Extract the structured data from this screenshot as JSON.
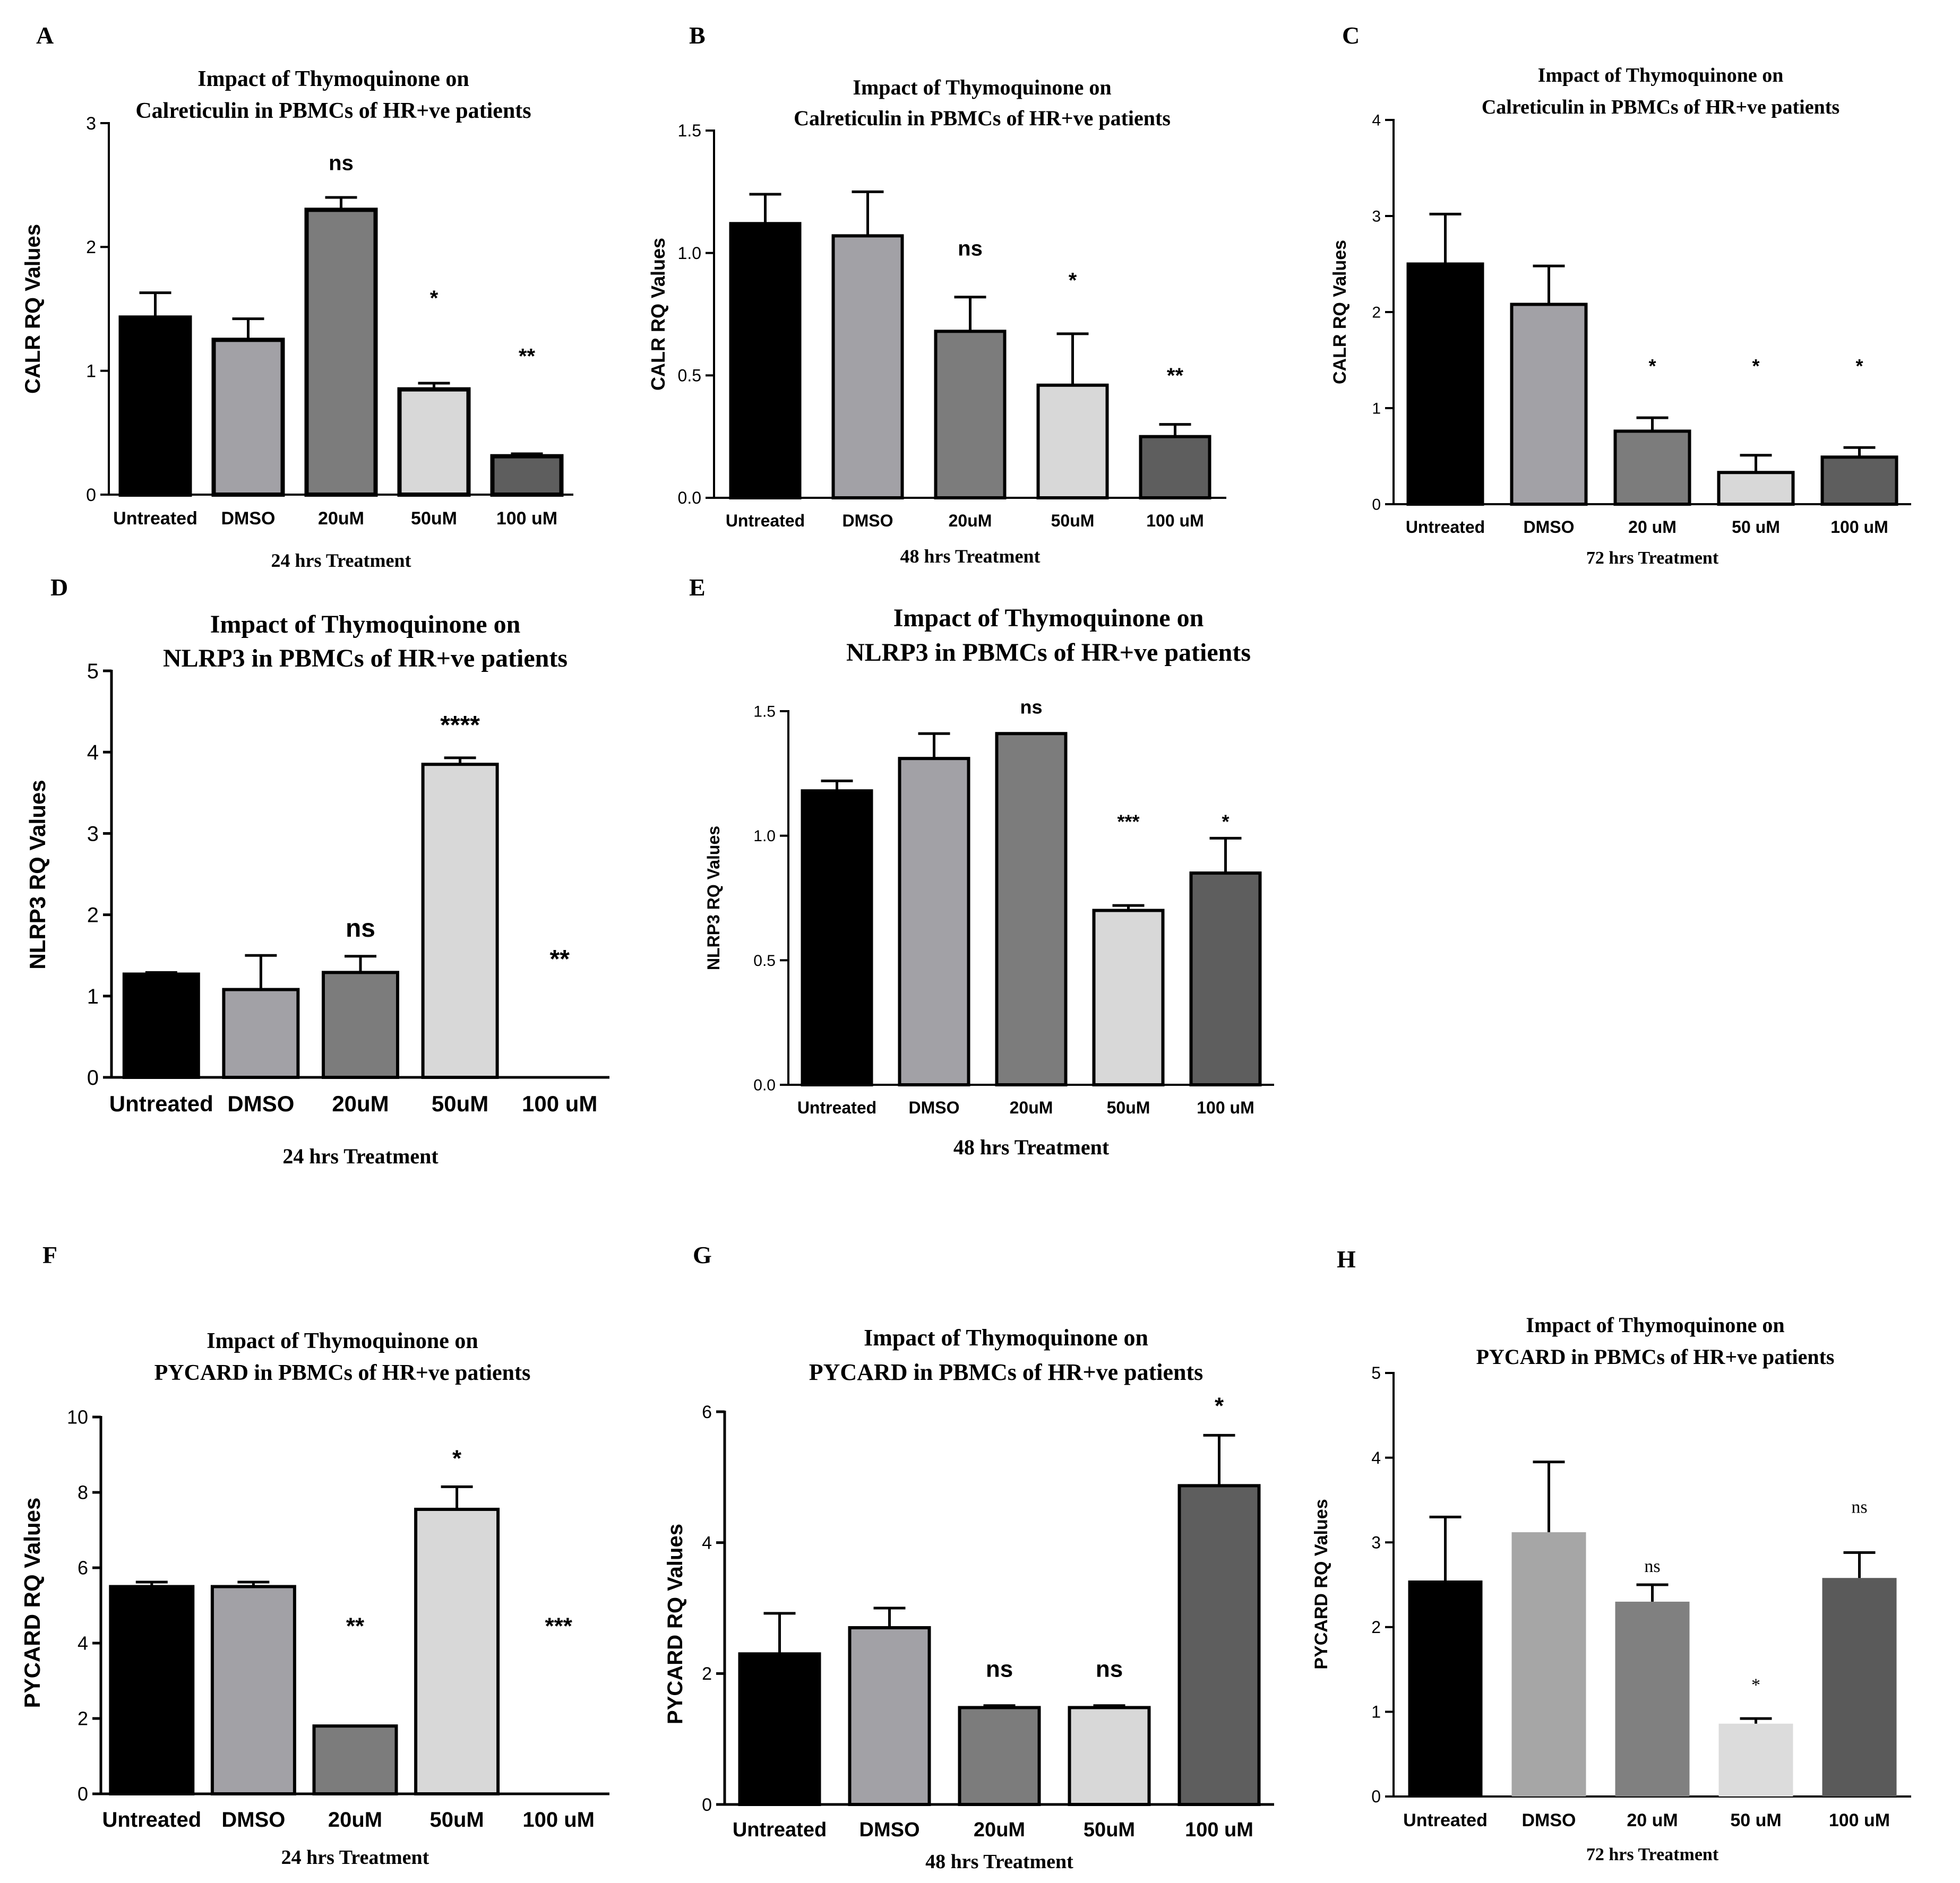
{
  "chart_data": [
    {
      "panel": "A",
      "type": "bar",
      "title": [
        "Impact of Thymoquinone on",
        "Calreticulin in PBMCs of HR+ve patients"
      ],
      "xlabel": "24 hrs Treatment",
      "ylabel": "CALR RQ Values",
      "ylim": [
        0,
        3
      ],
      "yticks": [
        "0",
        "1",
        "2",
        "3"
      ],
      "categories": [
        "Untreated",
        "DMSO",
        "20uM",
        "50uM",
        "100 uM"
      ],
      "values": [
        1.43,
        1.25,
        2.3,
        0.85,
        0.31
      ],
      "errors": [
        0.2,
        0.17,
        0.1,
        0.05,
        0.02
      ],
      "significance": [
        "",
        "",
        "ns",
        "*",
        "**"
      ],
      "sig_y": [
        null,
        null,
        2.62,
        1.53,
        1.06
      ],
      "colors": [
        "#000000",
        "#a2a1a6",
        "#7c7c7c",
        "#d8d8d8",
        "#5e5e5e"
      ]
    },
    {
      "panel": "B",
      "type": "bar",
      "title": [
        "Impact of Thymoquinone on",
        "Calreticulin in PBMCs of HR+ve patients"
      ],
      "xlabel": "48 hrs Treatment",
      "ylabel": "CALR RQ Values",
      "ylim": [
        0,
        1.5
      ],
      "yticks": [
        "0.0",
        "0.5",
        "1.0",
        "1.5"
      ],
      "categories": [
        "Untreated",
        "DMSO",
        "20uM",
        "50uM",
        "100 uM"
      ],
      "values": [
        1.12,
        1.07,
        0.68,
        0.46,
        0.25
      ],
      "errors": [
        0.12,
        0.18,
        0.14,
        0.21,
        0.05
      ],
      "significance": [
        "",
        "",
        "ns",
        "*",
        "**"
      ],
      "sig_y": [
        null,
        null,
        0.99,
        0.86,
        0.47
      ],
      "colors": [
        "#000000",
        "#a2a1a6",
        "#7c7c7c",
        "#d8d8d8",
        "#5e5e5e"
      ]
    },
    {
      "panel": "C",
      "type": "bar",
      "title": [
        "Impact of Thymoquinone on",
        "Calreticulin in PBMCs of HR+ve patients"
      ],
      "xlabel": "72 hrs Treatment",
      "ylabel": "CALR RQ Values",
      "ylim": [
        0,
        4
      ],
      "yticks": [
        "0",
        "1",
        "2",
        "3",
        "4"
      ],
      "categories": [
        "Untreated",
        "DMSO",
        "20 uM",
        "50 uM",
        "100 uM"
      ],
      "values": [
        2.5,
        2.08,
        0.76,
        0.33,
        0.49
      ],
      "errors": [
        0.52,
        0.4,
        0.14,
        0.18,
        0.1
      ],
      "significance": [
        "",
        "",
        "*",
        "*",
        "*"
      ],
      "sig_y": [
        null,
        null,
        1.37,
        1.37,
        1.37
      ],
      "colors": [
        "#000000",
        "#a2a1a6",
        "#7c7c7c",
        "#d8d8d8",
        "#5e5e5e"
      ]
    },
    {
      "panel": "D",
      "type": "bar",
      "title": [
        "Impact of Thymoquinone on",
        "NLRP3 in PBMCs of HR+ve patients"
      ],
      "xlabel": "24 hrs Treatment",
      "ylabel": "NLRP3 RQ Values",
      "ylim": [
        0,
        5
      ],
      "yticks": [
        "0",
        "1",
        "2",
        "3",
        "4",
        "5"
      ],
      "categories": [
        "Untreated",
        "DMSO",
        "20uM",
        "50uM",
        "100 uM"
      ],
      "values": [
        1.27,
        1.08,
        1.29,
        3.85,
        0
      ],
      "errors": [
        0.02,
        0.42,
        0.2,
        0.08,
        0
      ],
      "significance": [
        "",
        "",
        "ns",
        "****",
        "**"
      ],
      "sig_y": [
        null,
        null,
        1.73,
        4.23,
        1.35
      ],
      "colors": [
        "#000000",
        "#a2a1a6",
        "#7c7c7c",
        "#d8d8d8",
        "#5e5e5e"
      ]
    },
    {
      "panel": "E",
      "type": "bar",
      "title": [
        "Impact of Thymoquinone on",
        "NLRP3 in PBMCs of HR+ve patients"
      ],
      "xlabel": "48 hrs Treatment",
      "ylabel": "NLRP3 RQ Values",
      "ylim": [
        0,
        1.5
      ],
      "yticks": [
        "0.0",
        "0.5",
        "1.0",
        "1.5"
      ],
      "categories": [
        "Untreated",
        "DMSO",
        "20uM",
        "50uM",
        "100 uM"
      ],
      "values": [
        1.18,
        1.31,
        1.41,
        0.7,
        0.85
      ],
      "errors": [
        0.04,
        0.1,
        0,
        0.02,
        0.14
      ],
      "significance": [
        "",
        "",
        "ns",
        "***",
        "*"
      ],
      "sig_y": [
        null,
        null,
        1.49,
        1.03,
        1.03
      ],
      "colors": [
        "#000000",
        "#a2a1a6",
        "#7c7c7c",
        "#d8d8d8",
        "#5e5e5e"
      ]
    },
    {
      "panel": "F",
      "type": "bar",
      "title": [
        "Impact of Thymoquinone on",
        "PYCARD in PBMCs of HR+ve patients"
      ],
      "xlabel": "24 hrs Treatment",
      "ylabel": "PYCARD RQ Values",
      "ylim": [
        0,
        10
      ],
      "yticks": [
        "0",
        "2",
        "4",
        "6",
        "8",
        "10"
      ],
      "categories": [
        "Untreated",
        "DMSO",
        "20uM",
        "50uM",
        "100 uM"
      ],
      "values": [
        5.5,
        5.5,
        1.8,
        7.55,
        0
      ],
      "errors": [
        0.12,
        0.12,
        0,
        0.6,
        0
      ],
      "significance": [
        "",
        "",
        "**",
        "*",
        "***"
      ],
      "sig_y": [
        null,
        null,
        4.25,
        8.7,
        4.25
      ],
      "colors": [
        "#000000",
        "#a2a1a6",
        "#7c7c7c",
        "#d8d8d8",
        "#5e5e5e"
      ]
    },
    {
      "panel": "G",
      "type": "bar",
      "title": [
        "Impact of Thymoquinone on",
        "PYCARD in PBMCs of HR+ve patients"
      ],
      "xlabel": "48 hrs Treatment",
      "ylabel": "PYCARD RQ Values",
      "ylim": [
        0,
        6
      ],
      "yticks": [
        "0",
        "2",
        "4",
        "6"
      ],
      "categories": [
        "Untreated",
        "DMSO",
        "20uM",
        "50uM",
        "100 uM"
      ],
      "values": [
        2.3,
        2.7,
        1.48,
        1.48,
        4.87
      ],
      "errors": [
        0.62,
        0.3,
        0.03,
        0.03,
        0.77
      ],
      "significance": [
        "",
        "",
        "ns",
        "ns",
        "*"
      ],
      "sig_y": [
        null,
        null,
        1.95,
        1.95,
        5.97
      ],
      "colors": [
        "#000000",
        "#a2a1a6",
        "#7c7c7c",
        "#d8d8d8",
        "#5e5e5e"
      ]
    },
    {
      "panel": "H",
      "type": "bar",
      "title": [
        "Impact of Thymoquinone on",
        "PYCARD in PBMCs of HR+ve patients"
      ],
      "xlabel": "72 hrs Treatment",
      "ylabel": "PYCARD RQ Values",
      "ylim": [
        0,
        5
      ],
      "yticks": [
        "0",
        "1",
        "2",
        "3",
        "4",
        "5"
      ],
      "categories": [
        "Untreated",
        "DMSO",
        "20 uM",
        "50 uM",
        "100 uM"
      ],
      "values": [
        2.55,
        3.12,
        2.3,
        0.86,
        2.58
      ],
      "errors": [
        0.75,
        0.83,
        0.2,
        0.06,
        0.3
      ],
      "significance": [
        "",
        "",
        "ns",
        "*",
        "ns"
      ],
      "sig_y": [
        null,
        null,
        2.65,
        1.25,
        3.35
      ],
      "colors": [
        "#000000",
        "#a6a6a6",
        "#808080",
        "#dcdcdc",
        "#5a5a5a"
      ]
    }
  ]
}
